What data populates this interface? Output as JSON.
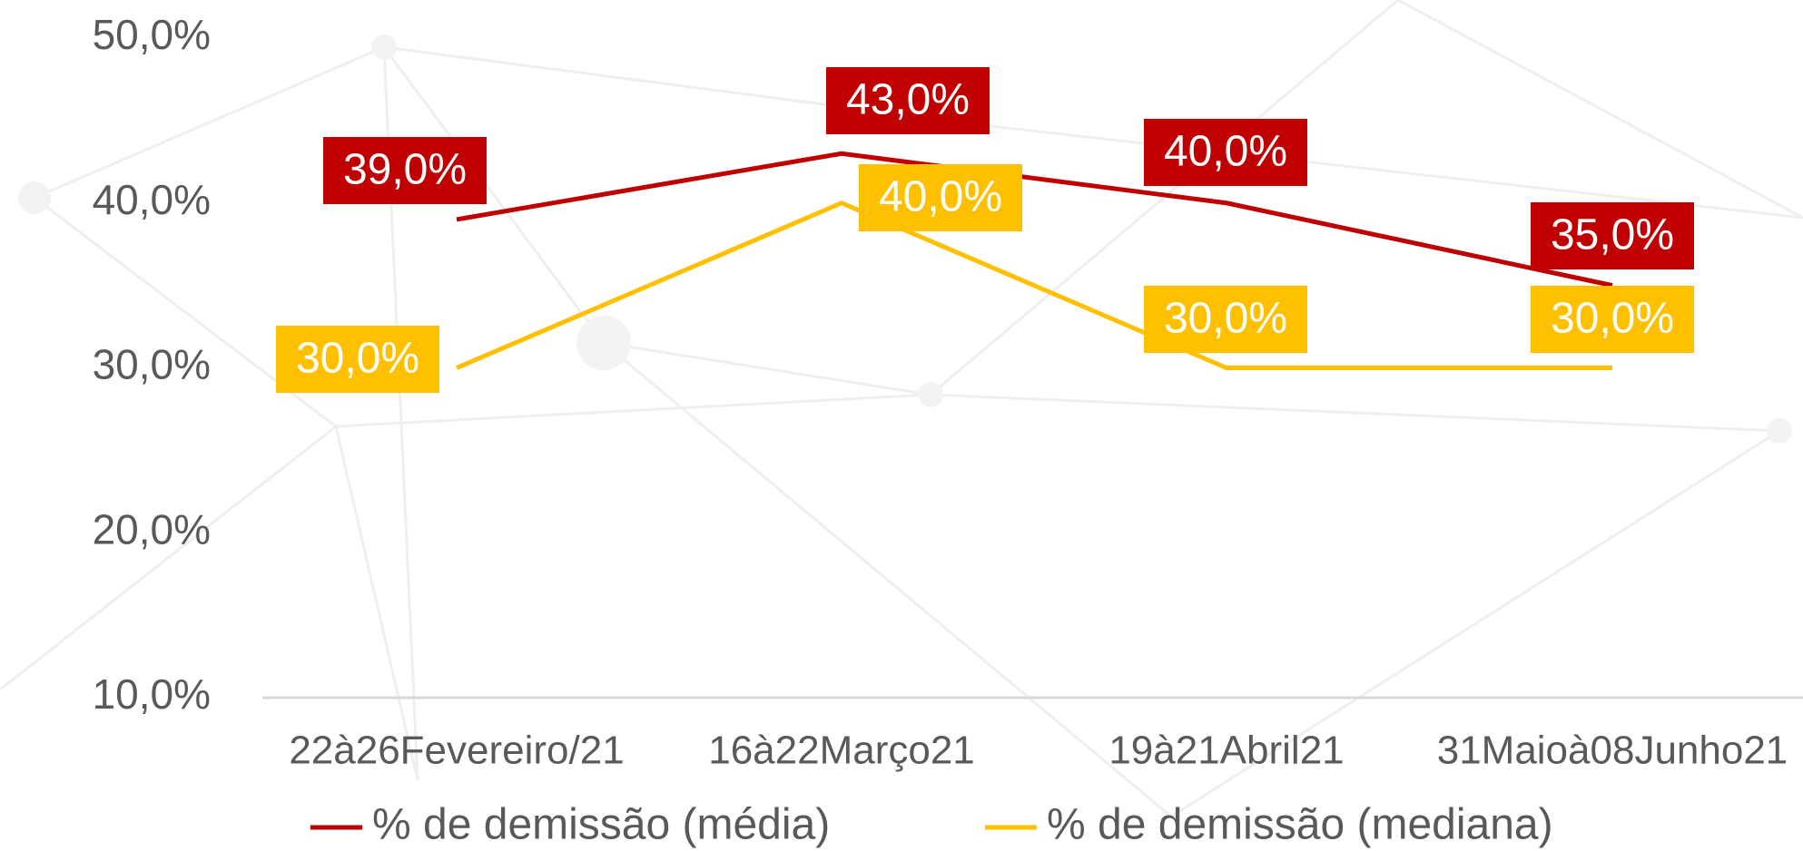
{
  "chart_data": {
    "type": "line",
    "categories": [
      "22à26Fevereiro/21",
      "16à22Março21",
      "19à21Abril21",
      "31Maioà08Junho21"
    ],
    "series": [
      {
        "name": "% de demissão (média)",
        "color": "#c00000",
        "values": [
          39,
          43,
          40,
          35
        ],
        "value_labels": [
          "39,0%",
          "43,0%",
          "40,0%",
          "35,0%"
        ]
      },
      {
        "name": "% de demissão (mediana)",
        "color": "#ffc000",
        "values": [
          30,
          40,
          30,
          30
        ],
        "value_labels": [
          "30,0%",
          "40,0%",
          "30,0%",
          "30,0%"
        ]
      }
    ],
    "ylim": [
      10,
      50
    ],
    "yticks": [
      {
        "value": 10,
        "label": "10,0%"
      },
      {
        "value": 20,
        "label": "20,0%"
      },
      {
        "value": 30,
        "label": "30,0%"
      },
      {
        "value": 40,
        "label": "40,0%"
      },
      {
        "value": 50,
        "label": "50,0%"
      }
    ]
  }
}
